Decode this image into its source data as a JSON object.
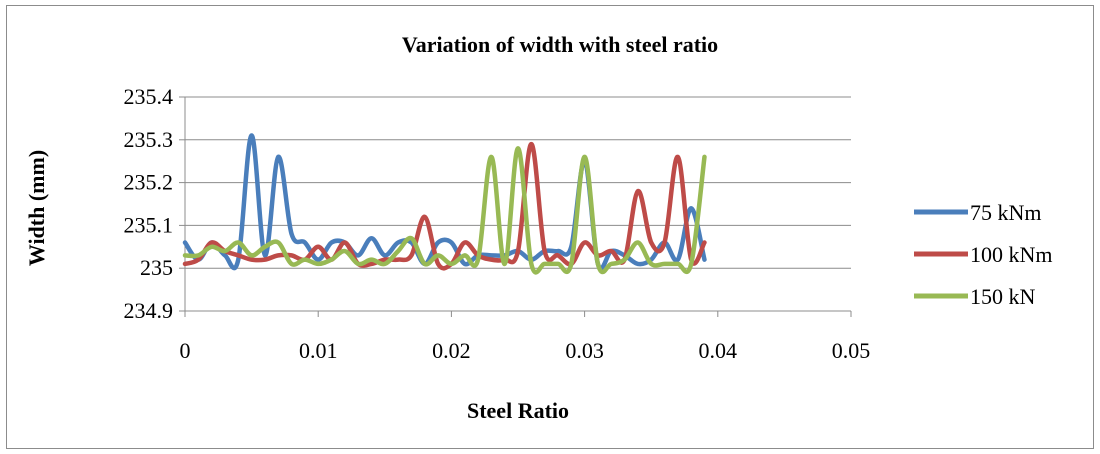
{
  "chart_data": {
    "type": "line",
    "title": "Variation of width with steel ratio",
    "xlabel": "Steel Ratio",
    "ylabel": "Width (mm)",
    "xlim": [
      0,
      0.05
    ],
    "ylim": [
      234.9,
      235.4
    ],
    "x_ticks": [
      "0",
      "0.01",
      "0.02",
      "0.03",
      "0.04",
      "0.05"
    ],
    "y_ticks": [
      "234.9",
      "235",
      "235.1",
      "235.2",
      "235.3",
      "235.4"
    ],
    "grid": "horizontal",
    "legend_position": "right",
    "series": [
      {
        "name": "75 kNm",
        "color": "#4a7ebb",
        "x": [
          0,
          0.001,
          0.002,
          0.003,
          0.004,
          0.005,
          0.006,
          0.007,
          0.008,
          0.009,
          0.01,
          0.011,
          0.012,
          0.013,
          0.014,
          0.015,
          0.016,
          0.017,
          0.018,
          0.019,
          0.02,
          0.021,
          0.022,
          0.023,
          0.024,
          0.025,
          0.026,
          0.027,
          0.028,
          0.029,
          0.03,
          0.031,
          0.032,
          0.033,
          0.034,
          0.035,
          0.036,
          0.037,
          0.038,
          0.039
        ],
        "values": [
          235.06,
          235.02,
          235.06,
          235.03,
          235.02,
          235.31,
          235.03,
          235.26,
          235.08,
          235.06,
          235.02,
          235.06,
          235.06,
          235.03,
          235.07,
          235.03,
          235.06,
          235.06,
          235.01,
          235.06,
          235.06,
          235.01,
          235.03,
          235.03,
          235.03,
          235.04,
          235.02,
          235.04,
          235.04,
          235.05,
          235.25,
          235.01,
          235.04,
          235.03,
          235.01,
          235.02,
          235.06,
          235.02,
          235.14,
          235.02
        ]
      },
      {
        "name": "100 kNm",
        "color": "#be4b48",
        "x": [
          0,
          0.001,
          0.002,
          0.003,
          0.004,
          0.005,
          0.006,
          0.007,
          0.008,
          0.009,
          0.01,
          0.011,
          0.012,
          0.013,
          0.014,
          0.015,
          0.016,
          0.017,
          0.018,
          0.019,
          0.02,
          0.021,
          0.022,
          0.023,
          0.024,
          0.025,
          0.026,
          0.027,
          0.028,
          0.029,
          0.03,
          0.031,
          0.032,
          0.033,
          0.034,
          0.035,
          0.036,
          0.037,
          0.038,
          0.039
        ],
        "values": [
          235.01,
          235.02,
          235.06,
          235.04,
          235.03,
          235.02,
          235.02,
          235.03,
          235.03,
          235.02,
          235.05,
          235.02,
          235.06,
          235.01,
          235.01,
          235.02,
          235.02,
          235.03,
          235.12,
          235.01,
          235.01,
          235.06,
          235.03,
          235.02,
          235.02,
          235.04,
          235.29,
          235.04,
          235.03,
          235.01,
          235.06,
          235.03,
          235.04,
          235.02,
          235.18,
          235.06,
          235.06,
          235.26,
          235.02,
          235.06
        ]
      },
      {
        "name": "150 kN",
        "color": "#98b954",
        "x": [
          0,
          0.001,
          0.002,
          0.003,
          0.004,
          0.005,
          0.006,
          0.007,
          0.008,
          0.009,
          0.01,
          0.011,
          0.012,
          0.013,
          0.014,
          0.015,
          0.016,
          0.017,
          0.018,
          0.019,
          0.02,
          0.021,
          0.022,
          0.023,
          0.024,
          0.025,
          0.026,
          0.027,
          0.028,
          0.029,
          0.03,
          0.031,
          0.032,
          0.033,
          0.034,
          0.035,
          0.036,
          0.037,
          0.038,
          0.039
        ],
        "values": [
          235.03,
          235.03,
          235.05,
          235.04,
          235.06,
          235.03,
          235.05,
          235.06,
          235.01,
          235.02,
          235.01,
          235.02,
          235.04,
          235.01,
          235.02,
          235.01,
          235.04,
          235.07,
          235.01,
          235.03,
          235.01,
          235.03,
          235.02,
          235.26,
          235.01,
          235.28,
          235.01,
          235.01,
          235.01,
          235.01,
          235.26,
          235.01,
          235.01,
          235.02,
          235.06,
          235.01,
          235.01,
          235.01,
          235.01,
          235.26
        ]
      }
    ]
  }
}
